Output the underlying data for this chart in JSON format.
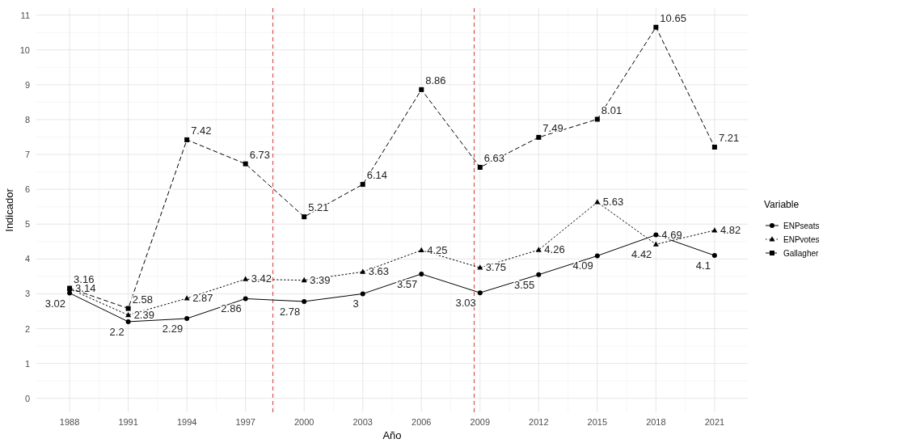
{
  "chart_data": {
    "type": "line",
    "xlabel": "Año",
    "ylabel": "Indicador",
    "legend_title": "Variable",
    "legend": "right",
    "x": [
      1988,
      1991,
      1994,
      1997,
      2000,
      2003,
      2006,
      2009,
      2012,
      2015,
      2018,
      2021
    ],
    "xlim": [
      1986.3,
      2022.7
    ],
    "xticks": [
      1988,
      1991,
      1994,
      1997,
      2000,
      2003,
      2006,
      2009,
      2012,
      2015,
      2018,
      2021
    ],
    "ylim": [
      -0.4,
      11.2
    ],
    "yticks": [
      0,
      1,
      2,
      3,
      4,
      5,
      6,
      7,
      8,
      9,
      10,
      11
    ],
    "grid": true,
    "data_labels": true,
    "series": [
      {
        "name": "ENPseats",
        "color": "#000000",
        "marker": "circle",
        "line_style": "solid",
        "values": [
          3.02,
          2.2,
          2.29,
          2.86,
          2.78,
          3,
          3.57,
          3.03,
          3.55,
          4.09,
          4.69,
          4.1
        ]
      },
      {
        "name": "ENPvotes",
        "color": "#000000",
        "marker": "triangle",
        "line_style": "dotted",
        "values": [
          3.14,
          2.39,
          2.87,
          3.42,
          3.39,
          3.63,
          4.25,
          3.75,
          4.26,
          5.63,
          4.42,
          4.82
        ]
      },
      {
        "name": "Gallagher",
        "color": "#000000",
        "marker": "square",
        "line_style": "dashed",
        "values": [
          3.16,
          2.58,
          7.42,
          6.73,
          5.21,
          6.14,
          8.86,
          6.63,
          7.49,
          8.01,
          10.65,
          7.21
        ]
      }
    ],
    "ref_lines": [
      {
        "axis": "x",
        "value": 1998.4,
        "color": "#d9534f",
        "line_style": "dashed"
      },
      {
        "axis": "x",
        "value": 2008.7,
        "color": "#d9534f",
        "line_style": "dashed"
      }
    ]
  }
}
